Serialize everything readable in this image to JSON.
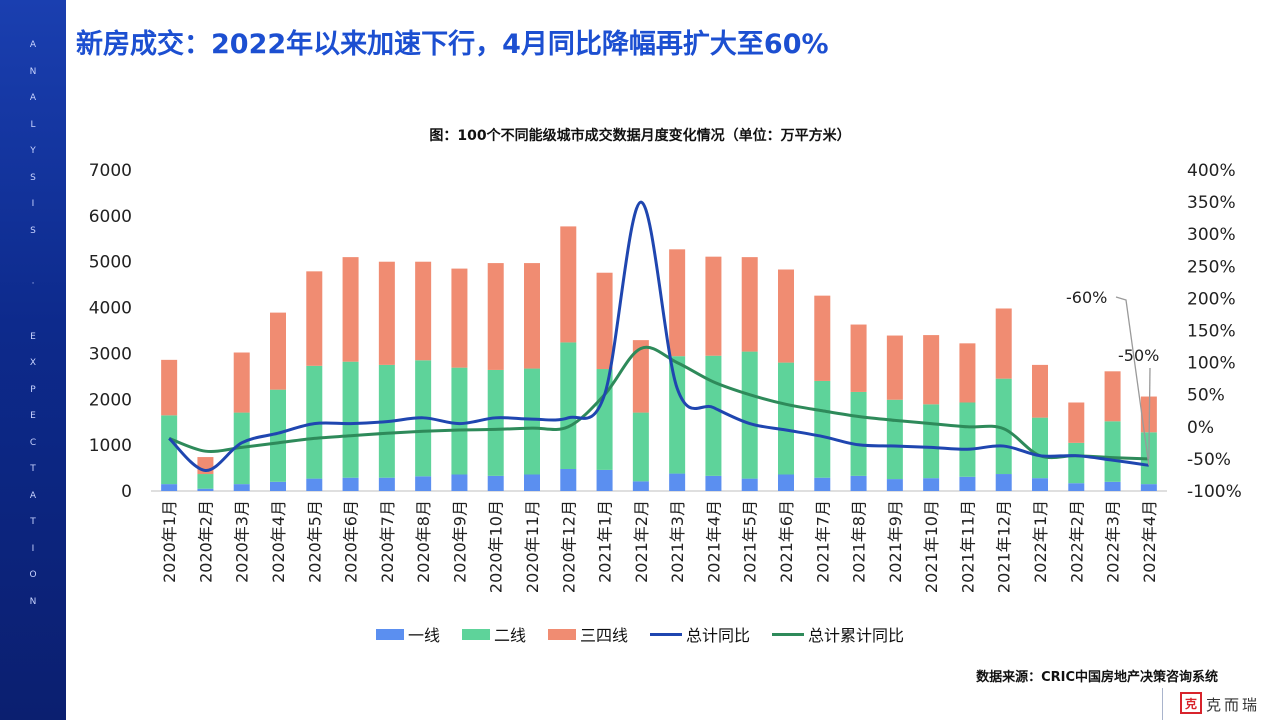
{
  "page": {
    "title": "新房成交：2022年以来加速下行，4月同比降幅再扩大至60%",
    "sidebar_text": "ANALYSIS · EXPECTATION",
    "source": "数据来源：CRIC中国房地产决策咨询系统",
    "logo_mark": "克",
    "logo_text": "克而瑞"
  },
  "legend": [
    {
      "label": "一线",
      "kind": "bar"
    },
    {
      "label": "二线",
      "kind": "bar"
    },
    {
      "label": "三四线",
      "kind": "bar"
    },
    {
      "label": "总计同比",
      "kind": "line"
    },
    {
      "label": "总计累计同比",
      "kind": "line"
    }
  ],
  "colors": {
    "tier1": "#5b8ff0",
    "tier2": "#5ed39a",
    "tier34": "#f08c72",
    "yoy": "#1f46b0",
    "cum_yoy": "#2e8a5a",
    "title": "#1c4fd1",
    "sidebar": "#0d2a8c"
  },
  "chart_data": {
    "type": "bar",
    "title": "图：100个不同能级城市成交数据月度变化情况（单位：万平方米）",
    "stacked": true,
    "categories": [
      "2020年1月",
      "2020年2月",
      "2020年3月",
      "2020年4月",
      "2020年5月",
      "2020年6月",
      "2020年7月",
      "2020年8月",
      "2020年9月",
      "2020年10月",
      "2020年11月",
      "2020年12月",
      "2021年1月",
      "2021年2月",
      "2021年3月",
      "2021年4月",
      "2021年5月",
      "2021年6月",
      "2021年7月",
      "2021年8月",
      "2021年9月",
      "2021年10月",
      "2021年11月",
      "2021年12月",
      "2022年1月",
      "2022年2月",
      "2022年3月",
      "2022年4月"
    ],
    "series": [
      {
        "name": "一线",
        "axis": "left",
        "values": [
          150,
          50,
          150,
          200,
          270,
          290,
          290,
          320,
          360,
          330,
          360,
          480,
          460,
          210,
          380,
          330,
          270,
          360,
          290,
          330,
          260,
          280,
          310,
          370,
          280,
          170,
          200,
          150
        ]
      },
      {
        "name": "二线",
        "axis": "left",
        "values": [
          1500,
          320,
          1560,
          2010,
          2460,
          2530,
          2460,
          2530,
          2330,
          2310,
          2310,
          2760,
          2200,
          1500,
          2560,
          2620,
          2770,
          2440,
          2110,
          1830,
          1730,
          1610,
          1620,
          2080,
          1320,
          880,
          1320,
          1130
        ]
      },
      {
        "name": "三四线",
        "axis": "left",
        "values": [
          1210,
          370,
          1310,
          1680,
          2060,
          2280,
          2250,
          2150,
          2160,
          2330,
          2300,
          2530,
          2100,
          1580,
          2330,
          2160,
          2060,
          2030,
          1860,
          1470,
          1400,
          1510,
          1290,
          1530,
          1150,
          880,
          1090,
          780
        ]
      },
      {
        "name": "总计同比",
        "axis": "right",
        "values": [
          -18,
          -68,
          -25,
          -10,
          5,
          5,
          8,
          14,
          5,
          14,
          12,
          14,
          50,
          350,
          60,
          30,
          5,
          -5,
          -15,
          -28,
          -30,
          -32,
          -35,
          -30,
          -45,
          -45,
          -52,
          -60
        ]
      },
      {
        "name": "总计累计同比",
        "axis": "right",
        "values": [
          -18,
          -38,
          -32,
          -25,
          -18,
          -14,
          -10,
          -7,
          -5,
          -4,
          -2,
          0,
          50,
          122,
          100,
          70,
          50,
          35,
          25,
          16,
          10,
          5,
          0,
          -3,
          -45,
          -45,
          -48,
          -50
        ]
      }
    ],
    "ylim_left": [
      0,
      7000
    ],
    "yticks_left": [
      "0",
      "1000",
      "2000",
      "3000",
      "4000",
      "5000",
      "6000",
      "7000"
    ],
    "ylim_right": [
      -100,
      400
    ],
    "yticks_right": [
      "-100%",
      "-50%",
      "0%",
      "50%",
      "100%",
      "150%",
      "200%",
      "250%",
      "300%",
      "350%",
      "400%"
    ],
    "annotations": [
      "-60%",
      "-50%"
    ],
    "grid": false,
    "legend_position": "bottom"
  }
}
